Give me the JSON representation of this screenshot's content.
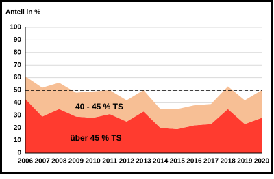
{
  "chart_data": {
    "type": "stacked_area",
    "y_label": "Anteil in %",
    "categories": [
      "2006",
      "2007",
      "2008",
      "2009",
      "2010",
      "2011",
      "2012",
      "2013",
      "2014",
      "2015",
      "2016",
      "2017",
      "2018",
      "2019",
      "2020"
    ],
    "series": [
      {
        "name": "über 45 % TS",
        "color": "#ff3b2f",
        "values": [
          43,
          29,
          35,
          29,
          28,
          31,
          25,
          33,
          20,
          19,
          22,
          23,
          35,
          23,
          28
        ]
      },
      {
        "name": "40 - 45 % TS",
        "color": "#f7bf95",
        "values": [
          18,
          23,
          21,
          19,
          21,
          19,
          17,
          17,
          15,
          16,
          16,
          16,
          18,
          19,
          22
        ]
      }
    ],
    "reference_line": 50,
    "ylim": [
      0,
      100
    ],
    "yticks": [
      0,
      10,
      20,
      30,
      40,
      50,
      60,
      70,
      80,
      90,
      100
    ],
    "grid": true
  }
}
